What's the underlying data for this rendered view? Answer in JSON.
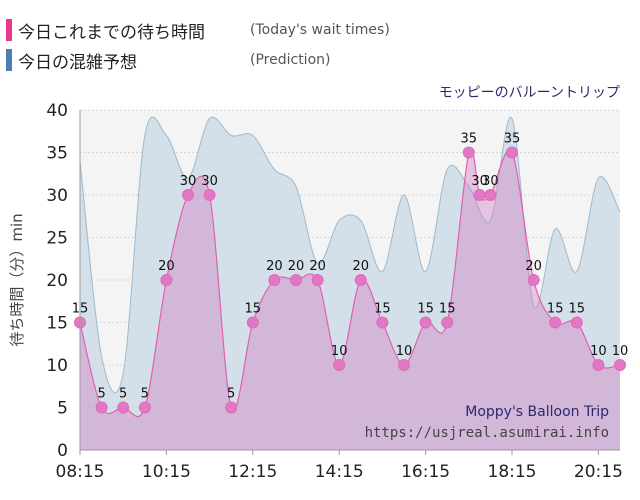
{
  "legend": {
    "items": [
      {
        "label": "今日これまでの待ち時間",
        "sub": "(Today's wait times)",
        "color": "#e8388f"
      },
      {
        "label": "今日の混雑予想",
        "sub": "(Prediction)",
        "color": "#4a7fb0"
      }
    ]
  },
  "chart_data": {
    "type": "area",
    "title": "モッピーのバルーントリップ",
    "watermark": {
      "ride": "Moppy's Balloon Trip",
      "site": "https://usjreal.asumirai.info"
    },
    "ylabel": "待ち時間（分）min",
    "ylim": [
      0,
      40
    ],
    "yticks": [
      0,
      5,
      10,
      15,
      20,
      25,
      30,
      35,
      40
    ],
    "xlim": [
      "08:15",
      "20:45"
    ],
    "xticks": [
      "08:15",
      "10:15",
      "12:15",
      "14:15",
      "16:15",
      "18:15",
      "20:15"
    ],
    "grid": true,
    "series": [
      {
        "name": "今日の混雑予想",
        "color": "#9fb9cc",
        "x": [
          "08:15",
          "08:45",
          "09:15",
          "09:45",
          "10:15",
          "10:45",
          "11:15",
          "11:45",
          "12:15",
          "12:45",
          "13:15",
          "13:45",
          "14:15",
          "14:45",
          "15:15",
          "15:45",
          "16:15",
          "16:45",
          "17:15",
          "17:45",
          "18:15",
          "18:45",
          "19:15",
          "19:45",
          "20:15",
          "20:45"
        ],
        "values": [
          34,
          11,
          9,
          37,
          37,
          32,
          39,
          37,
          37,
          33,
          31,
          22,
          27,
          27,
          21,
          30,
          21,
          33,
          31,
          27,
          39,
          17,
          26,
          21,
          32,
          28
        ]
      },
      {
        "name": "今日これまでの待ち時間",
        "color": "#e060b0",
        "x": [
          "08:15",
          "08:45",
          "09:15",
          "09:45",
          "10:15",
          "10:45",
          "11:15",
          "11:45",
          "12:15",
          "12:45",
          "13:15",
          "13:45",
          "14:15",
          "14:45",
          "15:15",
          "15:45",
          "16:15",
          "16:45",
          "17:15",
          "17:30",
          "17:45",
          "18:15",
          "18:45",
          "19:15",
          "19:45",
          "20:15",
          "20:45"
        ],
        "values": [
          15,
          5,
          5,
          5,
          20,
          30,
          30,
          5,
          15,
          20,
          20,
          20,
          10,
          20,
          15,
          10,
          15,
          15,
          35,
          30,
          30,
          35,
          20,
          15,
          15,
          10,
          10
        ]
      }
    ]
  }
}
